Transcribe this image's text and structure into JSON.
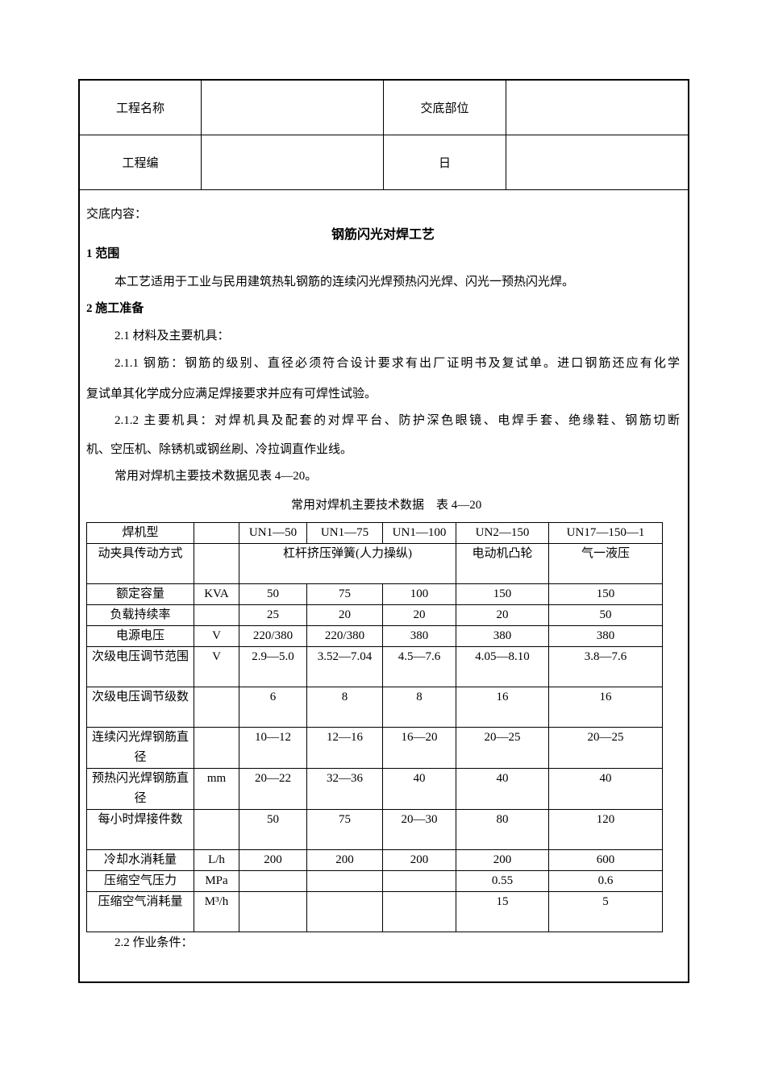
{
  "header": {
    "project_name_label": "工程名称",
    "project_name_value": "",
    "location_label": "交底部位",
    "location_value": "",
    "project_no_label": "工程编",
    "project_no_value": "",
    "date_label": "日",
    "date_value": ""
  },
  "content": {
    "intro_label": "交底内容：",
    "title": "钢筋闪光对焊工艺",
    "s1_heading": "1 范围",
    "s1_body": "本工艺适用于工业与民用建筑热轧钢筋的连续闪光焊预热闪光焊、闪光一预热闪光焊。",
    "s2_heading": "2 施工准备",
    "s2_1": "2.1 材料及主要机具：",
    "s2_1_1_a": "2.1.1 钢筋：钢筋的级别、直径必须符合设计要求有出厂证明书及复试单。进口钢筋还应有化学",
    "s2_1_1_b": "复试单其化学成分应满足焊接要求并应有可焊性试验。",
    "s2_1_2_a": "2.1.2 主要机具：对焊机具及配套的对焊平台、防护深色眼镜、电焊手套、绝缘鞋、钢筋切断",
    "s2_1_2_b": "机、空压机、除锈机或钢丝刷、冷拉调直作业线。",
    "table_ref": "常用对焊机主要技术数据见表 4—20。",
    "table_caption": "常用对焊机主要技术数据　表 4—20",
    "s2_2": "2.2 作业条件："
  },
  "table": {
    "rows": [
      {
        "label": "焊机型",
        "unit": "",
        "values": [
          "UN1—50",
          "UN1—75",
          "UN1—100",
          "UN2—150",
          "UN17—150—1"
        ]
      },
      {
        "label": "动夹具传动方式",
        "unit": "",
        "values": [
          "杠杆挤压弹簧(人力操纵)",
          "电动机凸轮",
          "气一液压"
        ]
      },
      {
        "label": "额定容量",
        "unit": "KVA",
        "values": [
          "50",
          "75",
          "100",
          "150",
          "150"
        ]
      },
      {
        "label": "负载持续率",
        "unit": "",
        "values": [
          "25",
          "20",
          "20",
          "20",
          "50"
        ]
      },
      {
        "label": "电源电压",
        "unit": "V",
        "values": [
          "220/380",
          "220/380",
          "380",
          "380",
          "380"
        ]
      },
      {
        "label": "次级电压调节范围",
        "unit": "V",
        "values": [
          "2.9—5.0",
          "3.52—7.04",
          "4.5—7.6",
          "4.05—8.10",
          "3.8—7.6"
        ]
      },
      {
        "label": "次级电压调节级数",
        "unit": "",
        "values": [
          "6",
          "8",
          "8",
          "16",
          "16"
        ]
      },
      {
        "label": "连续闪光焊钢筋直径",
        "unit": "",
        "values": [
          "10—12",
          "12—16",
          "16—20",
          "20—25",
          "20—25"
        ]
      },
      {
        "label": "预热闪光焊钢筋直径",
        "unit": "mm",
        "values": [
          "20—22",
          "32—36",
          "40",
          "40",
          "40"
        ]
      },
      {
        "label": "每小时焊接件数",
        "unit": "",
        "values": [
          "50",
          "75",
          "20—30",
          "80",
          "120"
        ]
      },
      {
        "label": "冷却水消耗量",
        "unit": "L/h",
        "values": [
          "200",
          "200",
          "200",
          "200",
          "600"
        ]
      },
      {
        "label": "压缩空气压力",
        "unit": "MPa",
        "values": [
          "",
          "",
          "",
          "0.55",
          "0.6"
        ]
      },
      {
        "label": "压缩空气消耗量",
        "unit": "M³/h",
        "values": [
          "",
          "",
          "",
          "15",
          "5"
        ]
      }
    ]
  }
}
